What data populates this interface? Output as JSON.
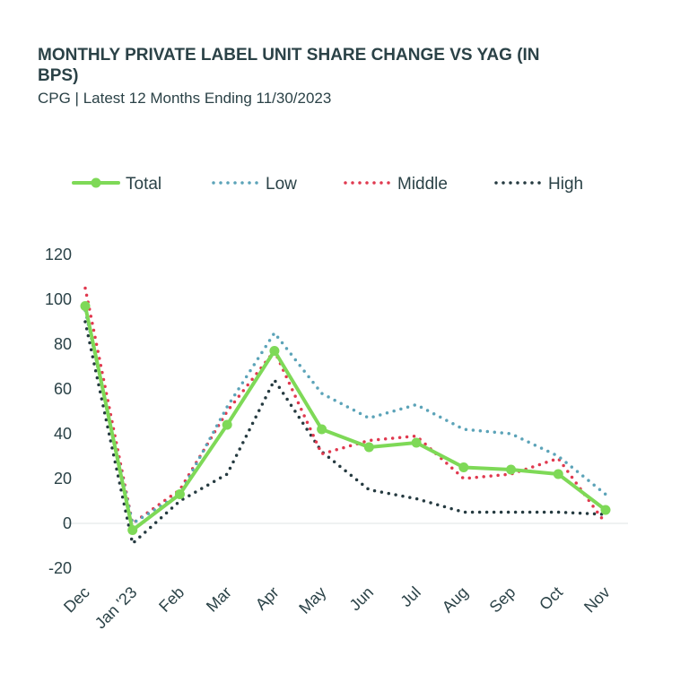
{
  "chart_data": {
    "type": "line",
    "title": "MONTHLY PRIVATE LABEL UNIT SHARE CHANGE VS YAG (IN BPS)",
    "subtitle": "CPG | Latest 12 Months Ending 11/30/2023",
    "categories": [
      "Dec",
      "Jan '23",
      "Feb",
      "Mar",
      "Apr",
      "May",
      "Jun",
      "Jul",
      "Aug",
      "Sep",
      "Oct",
      "Nov"
    ],
    "ylim": [
      -20,
      120
    ],
    "yticks": [
      120,
      100,
      80,
      60,
      40,
      20,
      0,
      -20
    ],
    "legend_position": "top",
    "grid": false,
    "series": [
      {
        "name": "Total",
        "style": "solid-markers",
        "color": "#7ed957",
        "values": [
          97,
          -3,
          13,
          44,
          77,
          42,
          34,
          36,
          25,
          24,
          22,
          6
        ]
      },
      {
        "name": "Low",
        "style": "dotted",
        "color": "#5ba3b8",
        "values": [
          95,
          0,
          13,
          52,
          85,
          58,
          47,
          53,
          42,
          40,
          30,
          13
        ]
      },
      {
        "name": "Middle",
        "style": "dotted",
        "color": "#e0394f",
        "values": [
          105,
          0,
          15,
          50,
          77,
          31,
          37,
          39,
          20,
          22,
          29,
          0
        ]
      },
      {
        "name": "High",
        "style": "dotted",
        "color": "#253a40",
        "values": [
          90,
          -9,
          10,
          22,
          64,
          32,
          15,
          11,
          5,
          5,
          5,
          4
        ]
      }
    ]
  }
}
